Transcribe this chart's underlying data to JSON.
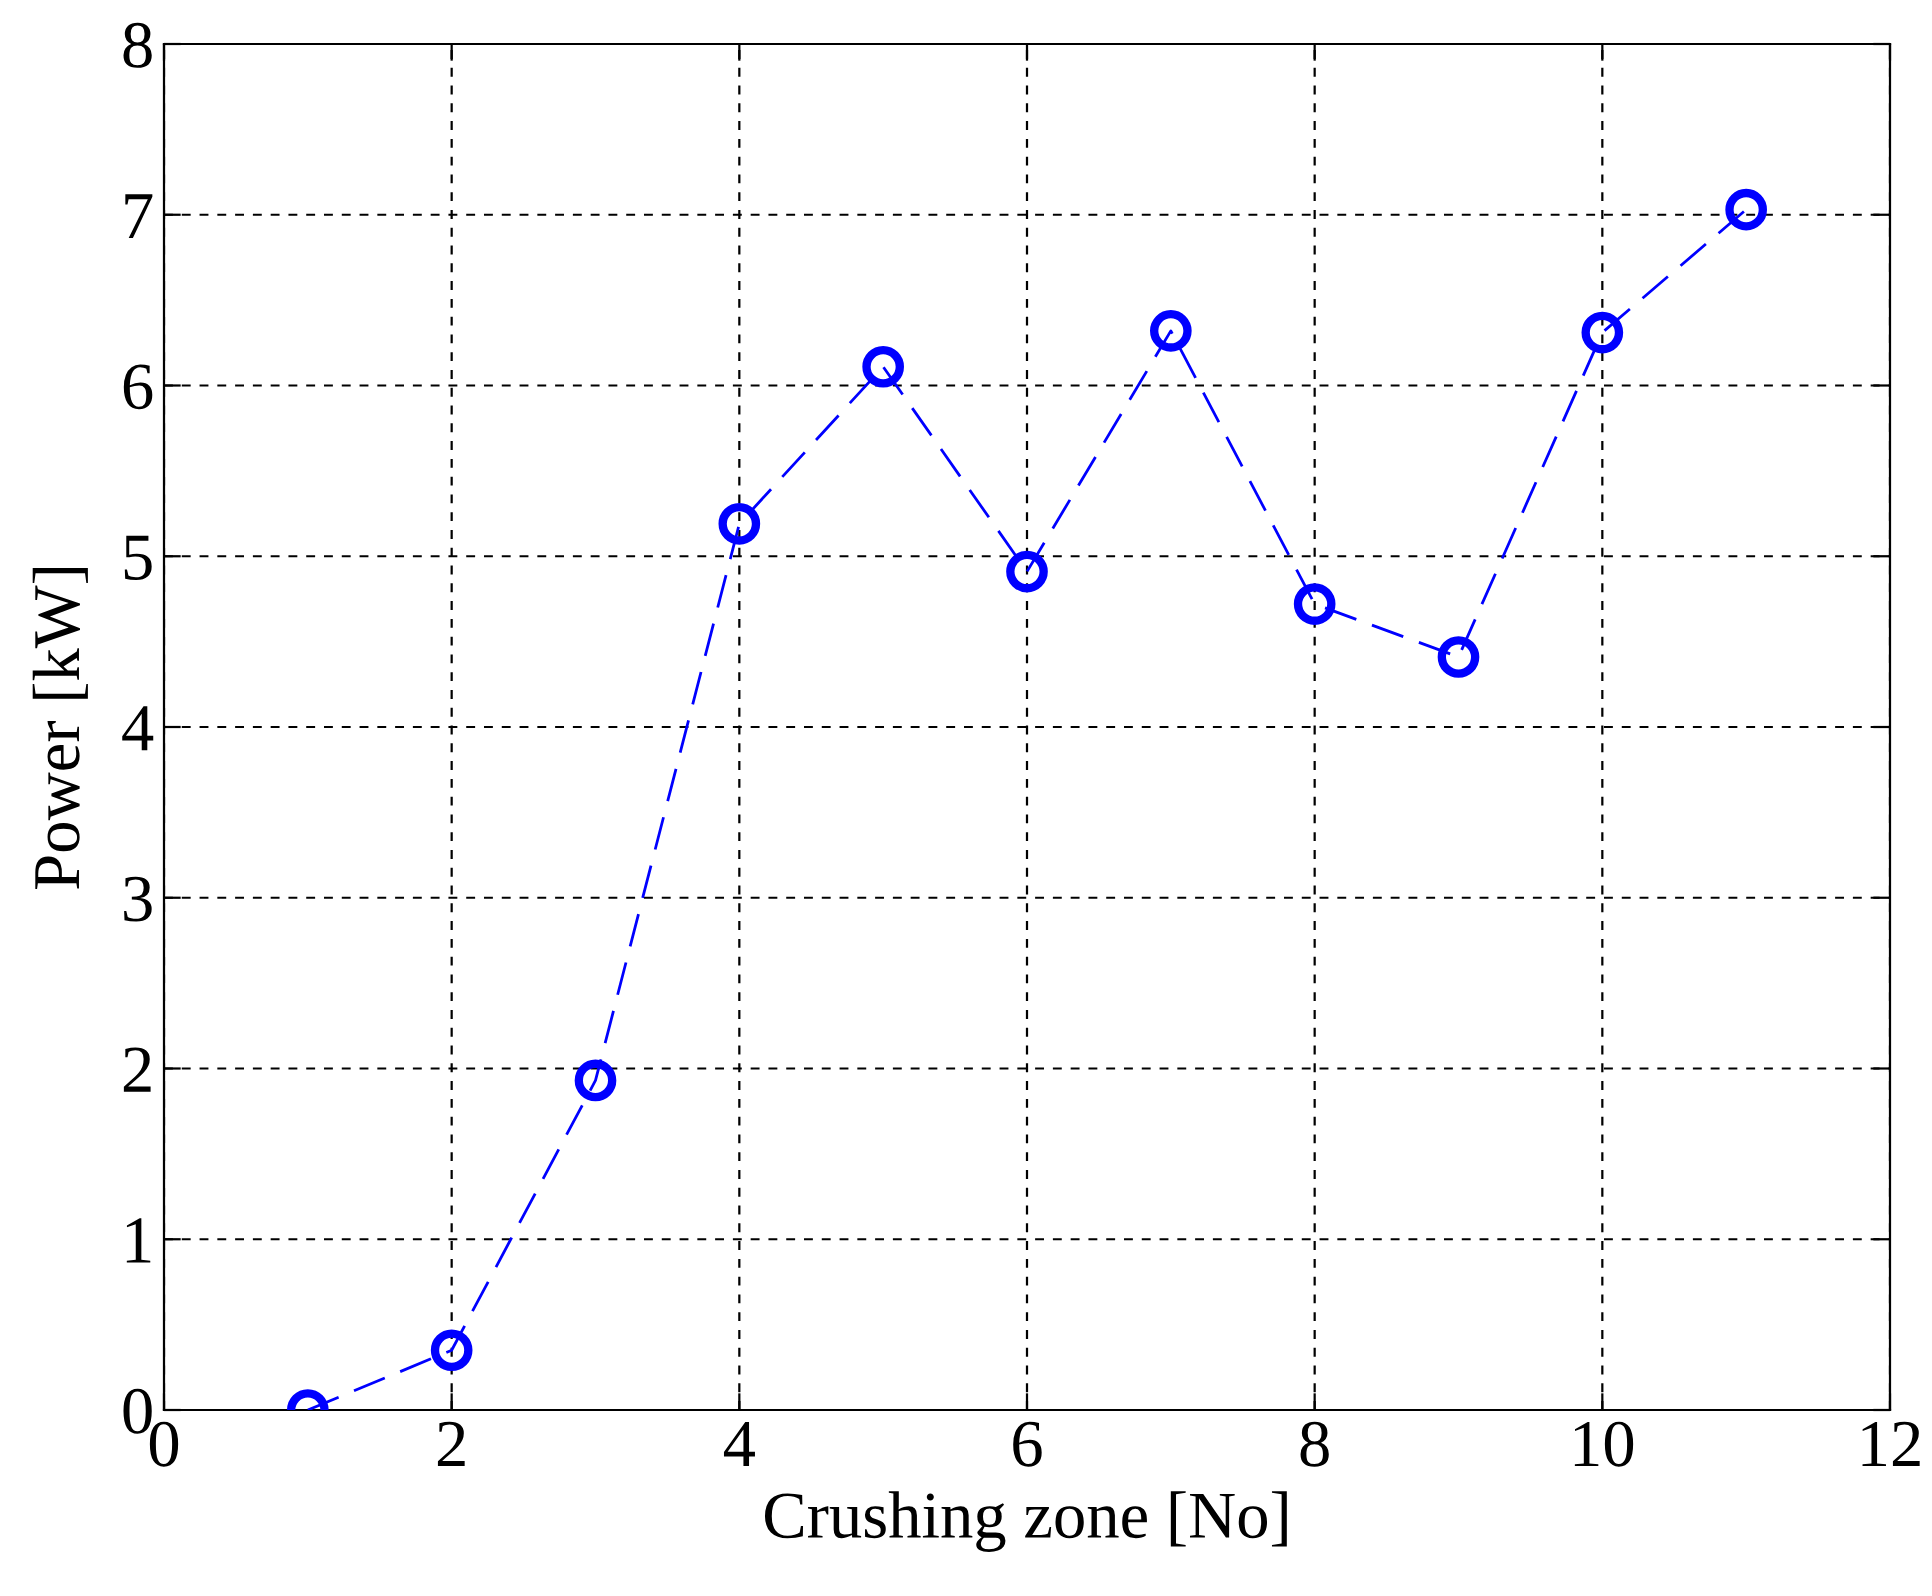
{
  "chart_data": {
    "type": "line",
    "xlabel": "Crushing zone [No]",
    "ylabel": "Power [kW]",
    "x": [
      1,
      2,
      3,
      4,
      5,
      6,
      7,
      8,
      9,
      10,
      11
    ],
    "series": [
      {
        "color": "#0000ff",
        "values": [
          0,
          0.35,
          1.93,
          5.19,
          6.11,
          4.91,
          6.32,
          4.72,
          4.41,
          6.31,
          7.03
        ]
      }
    ],
    "xlim": [
      0,
      12
    ],
    "ylim": [
      0,
      8
    ],
    "xticks": [
      0,
      2,
      4,
      6,
      8,
      10,
      12
    ],
    "yticks": [
      0,
      1,
      2,
      3,
      4,
      5,
      6,
      7,
      8
    ],
    "grid": true,
    "marker": "circle",
    "line_style": "dashed"
  }
}
